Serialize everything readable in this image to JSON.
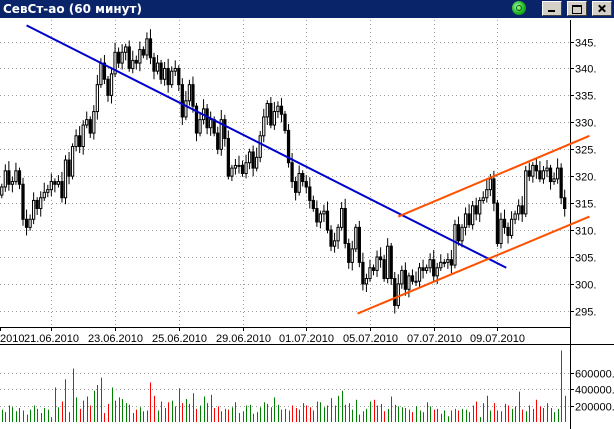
{
  "window": {
    "title": "СевСт-ао (60 минут)",
    "colors": {
      "titlebar": "#0a246a",
      "candle_up": "#ffffff",
      "candle_down": "#000000",
      "vol_up": "#008000",
      "vol_down": "#ff0000",
      "trend_down": "#0000cc",
      "channel": "#ff5000",
      "grid": "#a0a0a0"
    }
  },
  "chart_data": [
    {
      "type": "candlestick",
      "title": "",
      "y_ticks": [
        "345.",
        "340.",
        "335.",
        "330.",
        "325.",
        "320.",
        "315.",
        "310.",
        "305.",
        "300.",
        "295."
      ],
      "ylim": [
        292,
        349
      ],
      "x_ticks": [
        "2010",
        "21.06.2010",
        "23.06.2010",
        "25.06.2010",
        "29.06.2010",
        "01.07.2010",
        "05.07.2010",
        "07.07.2010",
        "09.07.2010"
      ],
      "grid": true,
      "close": [
        318.0,
        321.0,
        318.5,
        319.0,
        321.0,
        318.5,
        312.0,
        310.5,
        312.0,
        315.5,
        314.0,
        316.0,
        317.0,
        317.5,
        319.0,
        318.5,
        319.0,
        316.0,
        323.0,
        320.0,
        325.5,
        327.5,
        325.5,
        329.5,
        330.5,
        328.0,
        332.0,
        337.0,
        341.0,
        338.0,
        335.0,
        339.0,
        343.0,
        341.0,
        343.0,
        344.0,
        340.0,
        341.5,
        341.0,
        343.5,
        342.5,
        345.5,
        342.0,
        339.5,
        341.0,
        338.0,
        340.0,
        337.0,
        339.5,
        340.0,
        337.0,
        331.0,
        334.0,
        337.0,
        333.0,
        328.0,
        330.5,
        332.5,
        329.0,
        330.5,
        328.0,
        325.0,
        330.5,
        327.0,
        320.0,
        321.5,
        322.0,
        322.0,
        320.5,
        322.5,
        324.5,
        321.5,
        323.5,
        327.5,
        331.0,
        333.5,
        329.5,
        332.0,
        333.0,
        331.5,
        328.5,
        322.5,
        319.0,
        317.0,
        320.5,
        319.0,
        318.0,
        315.5,
        314.0,
        311.5,
        313.0,
        313.5,
        310.0,
        307.0,
        308.0,
        310.5,
        314.0,
        307.5,
        304.0,
        306.5,
        310.5,
        304.0,
        300.0,
        301.0,
        303.0,
        302.5,
        305.0,
        304.5,
        301.0,
        307.0,
        301.0,
        296.0,
        300.0,
        302.5,
        299.0,
        301.5,
        300.5,
        300.5,
        303.0,
        302.5,
        303.0,
        304.5,
        301.5,
        303.0,
        304.0,
        304.0,
        304.5,
        303.5,
        311.0,
        308.0,
        310.5,
        313.0,
        311.0,
        314.5,
        313.0,
        315.5,
        316.0,
        317.5,
        319.5,
        315.0,
        307.5,
        312.0,
        310.5,
        309.0,
        312.0,
        313.0,
        314.5,
        313.0,
        321.0,
        320.0,
        322.0,
        321.0,
        319.5,
        321.0,
        321.5,
        319.0,
        319.5,
        321.5,
        316.0,
        314.0
      ],
      "volume": [
        150000,
        120000,
        200000,
        180000,
        130000,
        170000,
        140000,
        90000,
        150000,
        200000,
        160000,
        110000,
        170000,
        150000,
        60000,
        420000,
        180000,
        250000,
        520000,
        120000,
        650000,
        300000,
        160000,
        260000,
        310000,
        200000,
        380000,
        450000,
        540000,
        110000,
        220000,
        420000,
        260000,
        300000,
        280000,
        230000,
        210000,
        110000,
        150000,
        180000,
        130000,
        140000,
        480000,
        320000,
        140000,
        250000,
        170000,
        240000,
        260000,
        190000,
        410000,
        230000,
        280000,
        220000,
        350000,
        160000,
        200000,
        310000,
        230000,
        330000,
        170000,
        190000,
        130000,
        160000,
        150000,
        180000,
        240000,
        110000,
        130000,
        200000,
        210000,
        100000,
        120000,
        180000,
        240000,
        220000,
        180000,
        300000,
        210000,
        150000,
        160000,
        140000,
        200000,
        170000,
        150000,
        230000,
        200000,
        180000,
        140000,
        250000,
        240000,
        180000,
        200000,
        290000,
        200000,
        320000,
        380000,
        210000,
        230000,
        150000,
        270000,
        90000,
        130000,
        160000,
        250000,
        270000,
        200000,
        220000,
        130000,
        160000,
        310000,
        210000,
        190000,
        180000,
        170000,
        150000,
        120000,
        190000,
        140000,
        120000,
        240000,
        190000,
        150000,
        160000,
        100000,
        140000,
        70000,
        140000,
        160000,
        140000,
        160000,
        150000,
        120000,
        200000,
        250000,
        60000,
        230000,
        320000,
        140000,
        230000,
        140000,
        130000,
        220000,
        200000,
        160000,
        190000,
        370000,
        150000,
        130000,
        200000,
        160000,
        270000,
        190000,
        170000,
        230000,
        170000,
        120000,
        160000,
        870000,
        320000
      ],
      "volume_ticks": [
        "600000.",
        "400000.",
        "200000."
      ],
      "trendlines": [
        {
          "name": "downtrend",
          "color": "#0000cc",
          "from": [
            7,
            348
          ],
          "to": [
            142.5,
            303.0
          ]
        },
        {
          "name": "channel-upper",
          "color": "#ff5000",
          "from": [
            112.0,
            312.5
          ],
          "to": [
            166.0,
            327.5
          ]
        },
        {
          "name": "channel-lower",
          "color": "#ff5000",
          "from": [
            100.5,
            294.5
          ],
          "to": [
            166.0,
            312.5
          ]
        }
      ]
    }
  ]
}
